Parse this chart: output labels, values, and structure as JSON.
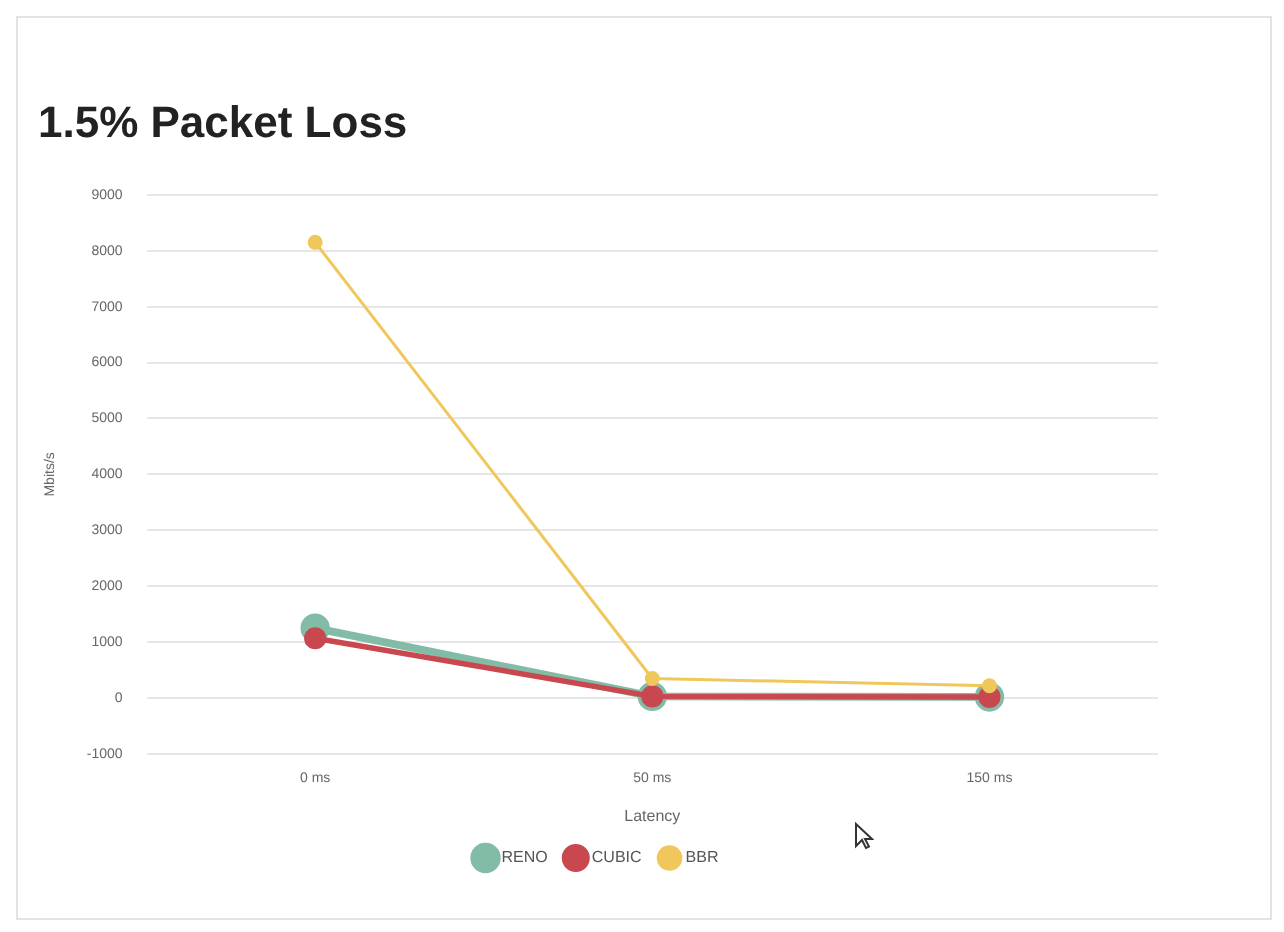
{
  "chart_data": {
    "type": "line",
    "title": "1.5% Packet Loss",
    "xlabel": "Latency",
    "ylabel": "Mbits/s",
    "categories": [
      "0 ms",
      "50 ms",
      "150 ms"
    ],
    "series": [
      {
        "name": "RENO",
        "color": "#82bba6",
        "values": [
          1250,
          30,
          20
        ]
      },
      {
        "name": "CUBIC",
        "color": "#c9474f",
        "values": [
          1070,
          30,
          20
        ]
      },
      {
        "name": "BBR",
        "color": "#f0c75a",
        "values": [
          8150,
          350,
          220
        ]
      }
    ],
    "ylim": [
      -1000,
      9000
    ],
    "yticks": [
      -1000,
      0,
      1000,
      2000,
      3000,
      4000,
      5000,
      6000,
      7000,
      8000,
      9000
    ],
    "grid": "y",
    "legend": "bottom",
    "marker": "circle",
    "line_style": "solid"
  }
}
